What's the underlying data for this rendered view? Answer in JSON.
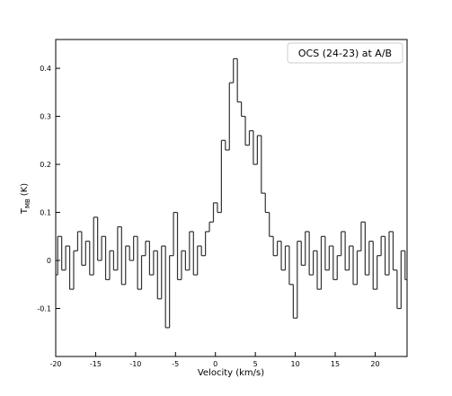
{
  "chart_data": {
    "type": "step",
    "xlabel": "Velocity (km/s)",
    "ylabel_parts": [
      "T",
      "MB",
      "(K)"
    ],
    "legend": "OCS (24-23) at A/B",
    "legend_loc": "upper right",
    "color": "#333333",
    "xlim": [
      -20,
      24
    ],
    "ylim": [
      -0.2,
      0.46
    ],
    "xticks": [
      -20,
      -15,
      -10,
      -5,
      0,
      5,
      10,
      15,
      20
    ],
    "yticks": [
      -0.1,
      0.0,
      0.1,
      0.2,
      0.3,
      0.4
    ],
    "x": [
      -20,
      -19.5,
      -19,
      -18.5,
      -18,
      -17.5,
      -17,
      -16.5,
      -16,
      -15.5,
      -15,
      -14.5,
      -14,
      -13.5,
      -13,
      -12.5,
      -12,
      -11.5,
      -11,
      -10.5,
      -10,
      -9.5,
      -9,
      -8.5,
      -8,
      -7.5,
      -7,
      -6.5,
      -6,
      -5.5,
      -5,
      -4.5,
      -4,
      -3.5,
      -3,
      -2.5,
      -2,
      -1.5,
      -1,
      -0.5,
      0,
      0.5,
      1,
      1.5,
      2,
      2.5,
      3,
      3.5,
      4,
      4.5,
      5,
      5.5,
      6,
      6.5,
      7,
      7.5,
      8,
      8.5,
      9,
      9.5,
      10,
      10.5,
      11,
      11.5,
      12,
      12.5,
      13,
      13.5,
      14,
      14.5,
      15,
      15.5,
      16,
      16.5,
      17,
      17.5,
      18,
      18.5,
      19,
      19.5,
      20,
      20.5,
      21,
      21.5,
      22,
      22.5,
      23,
      23.5,
      24
    ],
    "values": [
      -0.03,
      0.05,
      -0.02,
      0.03,
      -0.06,
      0.02,
      0.06,
      -0.01,
      0.04,
      -0.03,
      0.09,
      0.0,
      0.05,
      -0.04,
      0.02,
      -0.02,
      0.07,
      -0.05,
      0.03,
      0.0,
      0.05,
      -0.06,
      0.01,
      0.04,
      -0.03,
      0.02,
      -0.08,
      0.03,
      -0.14,
      0.01,
      0.1,
      -0.04,
      0.02,
      -0.02,
      0.06,
      -0.03,
      0.03,
      0.01,
      0.06,
      0.08,
      0.12,
      0.1,
      0.25,
      0.23,
      0.37,
      0.42,
      0.33,
      0.3,
      0.24,
      0.27,
      0.2,
      0.26,
      0.14,
      0.1,
      0.05,
      0.01,
      0.04,
      -0.02,
      0.03,
      -0.05,
      -0.12,
      0.04,
      -0.01,
      0.06,
      -0.03,
      0.02,
      -0.06,
      0.05,
      -0.02,
      0.03,
      -0.04,
      0.01,
      0.06,
      -0.02,
      0.03,
      -0.05,
      0.02,
      0.08,
      -0.03,
      0.04,
      -0.06,
      0.01,
      0.05,
      -0.03,
      0.06,
      -0.02,
      -0.1,
      0.02,
      -0.04
    ]
  }
}
